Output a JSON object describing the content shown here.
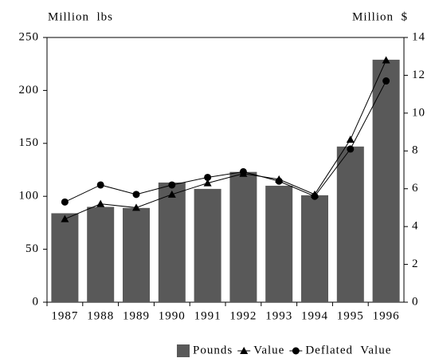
{
  "chart_data": {
    "type": "bar",
    "y_label": "Million  lbs",
    "y2_label": "Million  $",
    "categories": [
      "1987",
      "1988",
      "1989",
      "1990",
      "1991",
      "1992",
      "1993",
      "1994",
      "1995",
      "1996"
    ],
    "series": [
      {
        "name": "Pounds",
        "type": "bar",
        "color": "#595959",
        "values": [
          84,
          90,
          89,
          113,
          107,
          123,
          110,
          101,
          147,
          229
        ]
      },
      {
        "name": "Value",
        "type": "line",
        "axis": "y2",
        "marker": "triangle",
        "color": "#000000",
        "values": [
          4.4,
          5.2,
          5.0,
          5.7,
          6.3,
          6.8,
          6.5,
          5.7,
          8.6,
          12.8
        ]
      },
      {
        "name": "Deflated  Value",
        "type": "line",
        "axis": "y2",
        "marker": "circle",
        "color": "#000000",
        "values": [
          5.3,
          6.2,
          5.7,
          6.2,
          6.6,
          6.9,
          6.4,
          5.6,
          8.1,
          11.7
        ]
      }
    ],
    "ylim": [
      0,
      250
    ],
    "yticks": [
      0,
      50,
      100,
      150,
      200,
      250
    ],
    "y2lim": [
      0,
      14
    ],
    "y2ticks": [
      0,
      2,
      4,
      6,
      8,
      10,
      12,
      14
    ],
    "legend": "bottom"
  }
}
